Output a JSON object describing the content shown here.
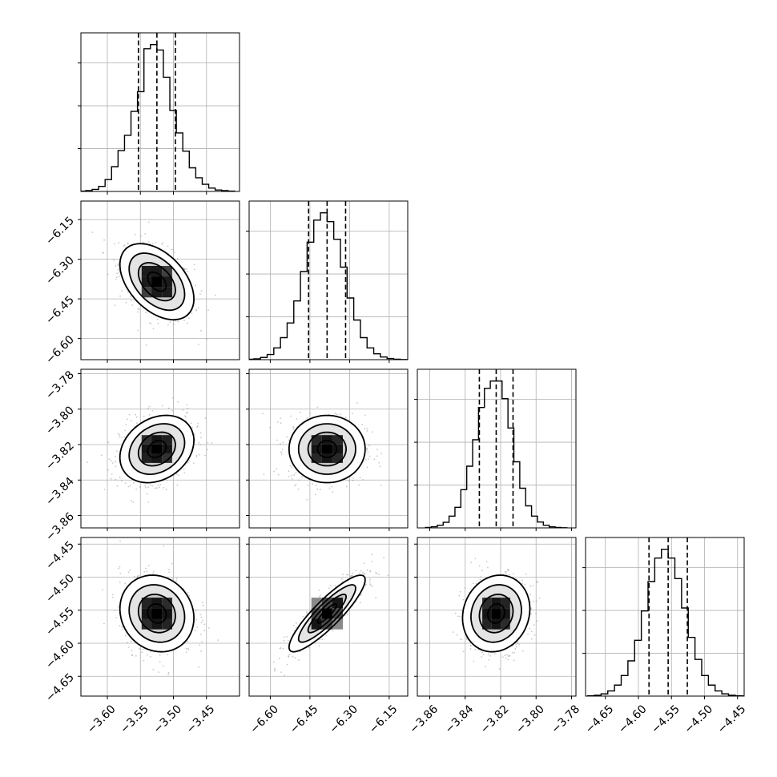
{
  "chart_data": {
    "type": "corner",
    "grid": true,
    "parameters": [
      {
        "range": [
          -3.64,
          -3.4
        ],
        "ticks": [
          -3.6,
          -3.55,
          -3.5,
          -3.45
        ],
        "tick_labels": [
          "−3.60",
          "−3.55",
          "−3.50",
          "−3.45"
        ],
        "mean": -3.525,
        "sd": 0.028,
        "quantiles": [
          -3.553,
          -3.525,
          -3.497
        ],
        "hist_counts": [
          0.2,
          0.5,
          1.3,
          3.2,
          7.5,
          15.6,
          25.8,
          35.4,
          50.5,
          62.9,
          90.0,
          92.6,
          89.2,
          72.0,
          51.1,
          36.9,
          25.4,
          14.9,
          8.6,
          4.5,
          2.1,
          0.9,
          0.5,
          0.2
        ]
      },
      {
        "range": [
          -6.68,
          -6.08
        ],
        "ticks": [
          -6.6,
          -6.45,
          -6.3,
          -6.15
        ],
        "tick_labels": [
          "−6.60",
          "−6.45",
          "−6.30",
          "−6.15"
        ],
        "mean": -6.385,
        "sd": 0.072,
        "quantiles": [
          -6.455,
          -6.385,
          -6.315
        ],
        "hist_counts": [
          0.3,
          0.6,
          1.5,
          3.5,
          8.0,
          15.0,
          25.0,
          40.0,
          60.0,
          80.0,
          95.0,
          100.0,
          94.0,
          82.0,
          63.0,
          42.0,
          27.0,
          15.0,
          8.0,
          4.0,
          1.8,
          0.8,
          0.3,
          0.1
        ]
      },
      {
        "range": [
          -3.867,
          -3.7775
        ],
        "ticks": [
          -3.86,
          -3.84,
          -3.82,
          -3.8,
          -3.78
        ],
        "tick_labels": [
          "−3.86",
          "−3.84",
          "−3.82",
          "−3.80",
          "−3.78"
        ],
        "mean": -3.8225,
        "sd": 0.0095,
        "quantiles": [
          -3.832,
          -3.8225,
          -3.813
        ],
        "hist_counts": [
          0.3,
          0.8,
          1.8,
          3.8,
          8.0,
          14.0,
          26.0,
          42.0,
          60.0,
          82.0,
          95.0,
          100.0,
          100.0,
          88.0,
          68.0,
          45.0,
          27.0,
          15.0,
          8.0,
          4.0,
          1.8,
          0.7,
          0.3,
          0.1
        ]
      },
      {
        "range": [
          -4.68,
          -4.44
        ],
        "ticks": [
          -4.65,
          -4.6,
          -4.55,
          -4.5,
          -4.45
        ],
        "tick_labels": [
          "−4.65",
          "−4.60",
          "−4.55",
          "−4.50",
          "−4.45"
        ],
        "mean": -4.555,
        "sd": 0.029,
        "quantiles": [
          -4.584,
          -4.555,
          -4.526
        ],
        "hist_counts": [
          0.2,
          0.6,
          1.5,
          3.5,
          7.5,
          14.0,
          24.0,
          38.0,
          58.0,
          78.0,
          94.0,
          100.0,
          94.0,
          80.0,
          60.0,
          40.0,
          25.0,
          14.0,
          7.5,
          3.5,
          1.5,
          0.6,
          0.2,
          0.1
        ]
      }
    ],
    "correlations": [
      {
        "x": 0,
        "y": 1,
        "rho": -0.45
      },
      {
        "x": 0,
        "y": 2,
        "rho": 0.25
      },
      {
        "x": 1,
        "y": 2,
        "rho": 0.0
      },
      {
        "x": 0,
        "y": 3,
        "rho": -0.12
      },
      {
        "x": 1,
        "y": 3,
        "rho": 0.88
      },
      {
        "x": 2,
        "y": 3,
        "rho": 0.12
      }
    ],
    "contour_levels_sigma": [
      0.5,
      1.0,
      1.5,
      2.0
    ],
    "scatter_points_per_panel": 700,
    "colors": {
      "line": "#000000",
      "grid": "#b0b0b0",
      "scatter": "#9a9a9a",
      "background": "#ffffff"
    }
  }
}
